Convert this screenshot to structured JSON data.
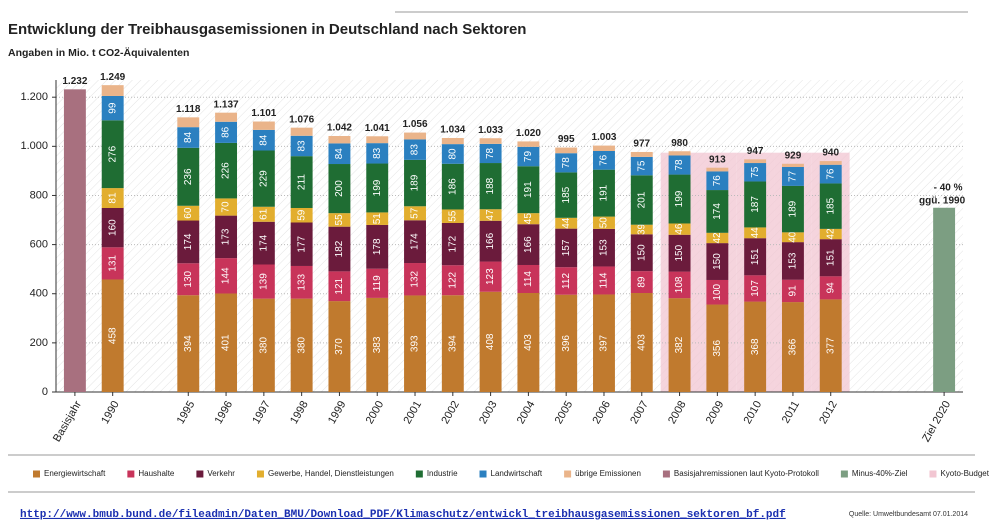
{
  "chart_data": {
    "type": "bar",
    "title": "Entwicklung der Treibhausgasemissionen in Deutschland nach Sektoren",
    "subtitle": "Angaben in Mio. t CO2-Äquivalenten",
    "categories": [
      "Basisjahr",
      "1990",
      null,
      "1995",
      "1996",
      "1997",
      "1998",
      "1999",
      "2000",
      "2001",
      "2002",
      "2003",
      "2004",
      "2005",
      "2006",
      "2007",
      "2008",
      "2009",
      "2010",
      "2011",
      "2012",
      null,
      null,
      "Ziel 2020"
    ],
    "ylim": [
      0,
      1270
    ],
    "yticks": [
      0,
      200,
      400,
      600,
      800,
      {
        "value": 1000,
        "label": "1.000"
      },
      {
        "value": 1200,
        "label": "1.200"
      }
    ],
    "grid": true,
    "series": [
      {
        "name": "Energiewirtschaft",
        "color": "#c07a2e",
        "kind": "stack",
        "labels": true,
        "values": [
          null,
          458,
          null,
          394,
          401,
          380,
          380,
          370,
          383,
          393,
          394,
          408,
          403,
          396,
          397,
          403,
          382,
          356,
          368,
          366,
          377,
          null,
          null,
          null
        ]
      },
      {
        "name": "Haushalte",
        "color": "#c8345a",
        "kind": "stack",
        "labels": true,
        "values": [
          null,
          131,
          null,
          130,
          144,
          139,
          133,
          121,
          119,
          132,
          122,
          123,
          114,
          112,
          114,
          89,
          108,
          100,
          107,
          91,
          94,
          null,
          null,
          null
        ]
      },
      {
        "name": "Verkehr",
        "color": "#6b1b3c",
        "kind": "stack",
        "labels": true,
        "values": [
          null,
          160,
          null,
          174,
          173,
          174,
          177,
          182,
          178,
          174,
          172,
          166,
          166,
          157,
          153,
          150,
          150,
          150,
          151,
          153,
          151,
          null,
          null,
          null
        ]
      },
      {
        "name": "Gewerbe, Handel, Dienstleistungen",
        "color": "#e2ae2e",
        "kind": "stack",
        "labels": true,
        "values": [
          null,
          81,
          null,
          60,
          70,
          61,
          59,
          55,
          51,
          57,
          55,
          47,
          45,
          44,
          50,
          39,
          46,
          42,
          44,
          40,
          42,
          null,
          null,
          null
        ]
      },
      {
        "name": "Industrie",
        "color": "#1f6d33",
        "kind": "stack",
        "labels": true,
        "values": [
          null,
          276,
          null,
          236,
          226,
          229,
          211,
          200,
          199,
          189,
          186,
          188,
          191,
          185,
          191,
          201,
          199,
          174,
          187,
          189,
          185,
          null,
          null,
          null
        ]
      },
      {
        "name": "Landwirtschaft",
        "color": "#2b80c0",
        "kind": "stack",
        "labels": true,
        "values": [
          null,
          99,
          null,
          84,
          86,
          84,
          83,
          84,
          83,
          83,
          80,
          78,
          79,
          78,
          76,
          75,
          78,
          76,
          75,
          77,
          76,
          null,
          null,
          null
        ]
      },
      {
        "name": "übrige Emissionen",
        "color": "#eab48a",
        "kind": "stack",
        "labels": false,
        "values": [
          null,
          44,
          null,
          40,
          37,
          34,
          33,
          30,
          28,
          28,
          25,
          23,
          22,
          23,
          22,
          20,
          17,
          15,
          15,
          13,
          15,
          null,
          null,
          null
        ]
      },
      {
        "name": "Basisjahremissionen laut Kyoto-Protokoll",
        "color": "#a8707f",
        "kind": "single",
        "labels": false,
        "values": [
          1232,
          null,
          null,
          null,
          null,
          null,
          null,
          null,
          null,
          null,
          null,
          null,
          null,
          null,
          null,
          null,
          null,
          null,
          null,
          null,
          null,
          null,
          null,
          null
        ]
      },
      {
        "name": "Minus-40%-Ziel",
        "color": "#7c9e82",
        "kind": "single",
        "labels": false,
        "values": [
          null,
          null,
          null,
          null,
          null,
          null,
          null,
          null,
          null,
          null,
          null,
          null,
          null,
          null,
          null,
          null,
          null,
          null,
          null,
          null,
          null,
          null,
          null,
          750
        ]
      },
      {
        "name": "Kyoto-Budget",
        "color": "#f2c6d2",
        "kind": "band",
        "labels": false,
        "values": [
          null,
          null,
          null,
          null,
          null,
          null,
          null,
          null,
          null,
          null,
          null,
          null,
          null,
          null,
          null,
          null,
          974,
          974,
          974,
          974,
          974,
          null,
          null,
          null
        ]
      }
    ],
    "totals": {
      "values": [
        1232,
        1249,
        null,
        1118,
        1137,
        1101,
        1076,
        1042,
        1041,
        1056,
        1034,
        1033,
        1020,
        995,
        1003,
        977,
        980,
        913,
        947,
        929,
        940,
        null,
        null,
        null
      ],
      "value_labels": [
        "1.232",
        "1.249",
        null,
        "1.118",
        "1.137",
        "1.101",
        "1.076",
        "1.042",
        "1.041",
        "1.056",
        "1.034",
        "1.033",
        "1.020",
        "995",
        "1.003",
        "977",
        "980",
        "913",
        "947",
        "929",
        "940",
        null,
        null,
        null
      ]
    },
    "annotations": [
      "- 40 %",
      "ggü. 1990"
    ]
  },
  "footer": {
    "url": "http://www.bmub.bund.de/fileadmin/Daten_BMU/Download_PDF/Klimaschutz/entwickl_treibhausgasemissionen_sektoren_bf.pdf",
    "source": "Quelle: Umweltbundesamt 07.01.2014"
  }
}
